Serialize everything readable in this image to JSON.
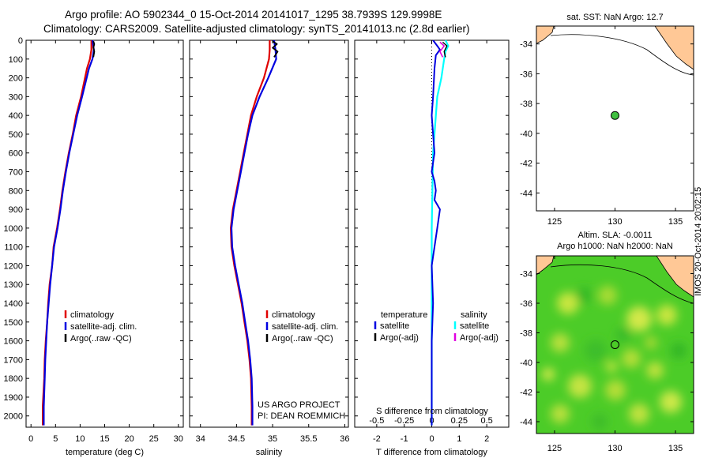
{
  "header": {
    "line1": "Argo profile: AO 5902344_0 15-Oct-2014 20141017_1295 38.7939S 129.9998E",
    "line2": "Climatology: CARS2009. Satellite-adjusted climatology: synTS_20141013.nc (2.8d earlier)"
  },
  "panels": {
    "depth_ticks": [
      "0",
      "100",
      "200",
      "300",
      "400",
      "500",
      "600",
      "700",
      "800",
      "900",
      "1000",
      "1100",
      "1200",
      "1300",
      "1400",
      "1500",
      "1600",
      "1700",
      "1800",
      "1900",
      "2000"
    ],
    "temp": {
      "xlabel": "temperature (deg C)",
      "xticks": [
        "0",
        "5",
        "10",
        "15",
        "20",
        "25",
        "30"
      ],
      "legend": [
        "climatology",
        "satellite-adj. clim.",
        "Argo(..raw -QC)"
      ]
    },
    "sal": {
      "xlabel": "salinity",
      "xticks": [
        "34",
        "34.5",
        "35",
        "35.5",
        "36"
      ],
      "legend": [
        "climatology",
        "satellite-adj. clim.",
        "Argo(..raw -QC)"
      ],
      "credit1": "US ARGO PROJECT",
      "credit2": "PI: DEAN ROEMMICH"
    },
    "diff": {
      "xlabel": "T difference from climatology",
      "toplabel": "S difference from climatology",
      "xticks": [
        "-2",
        "-1",
        "0",
        "1",
        "2"
      ],
      "sticks": [
        "-0.5",
        "-0.25",
        "0",
        "0.25",
        "0.5"
      ],
      "leg_head_t": "temperature",
      "leg_head_s": "salinity",
      "leg_t": [
        "satellite",
        "Argo(-adj)"
      ],
      "leg_s": [
        "satellite",
        "Argo(-adj)"
      ]
    }
  },
  "maps": {
    "sst_title": "sat. SST: NaN  Argo: 12.7",
    "sla_title1": "Altim. SLA: -0.0011",
    "sla_title2": "Argo h1000: NaN  h2000: NaN",
    "lat_ticks": [
      "-34",
      "-36",
      "-38",
      "-40",
      "-42",
      "-44"
    ],
    "lon_ticks": [
      "125",
      "130",
      "135"
    ],
    "stamp": "IMOS 20-Oct-2014 20:02:15"
  },
  "colors": {
    "clim": "#e00000",
    "sat": "#0000e0",
    "argo": "#000000",
    "sal_sat": "#00ffff",
    "sal_argo": "#e000e0",
    "land": "#ffc896",
    "marker": "#40c040"
  },
  "chart_data": [
    {
      "type": "line",
      "title": "temperature profile",
      "xlabel": "temperature (deg C)",
      "ylabel": "depth (m)",
      "xlim": [
        -1,
        31
      ],
      "ylim": [
        2060,
        0
      ],
      "series": [
        {
          "name": "climatology",
          "x": [
            12.3,
            12.3,
            12.0,
            11.4,
            10.2,
            9.2,
            8.5,
            7.7,
            7.0,
            6.4,
            5.9,
            5.3,
            4.6,
            4.3,
            3.8,
            3.5,
            3.3,
            3.0,
            2.8,
            2.7,
            2.4,
            2.4
          ],
          "depth": [
            0,
            50,
            100,
            150,
            300,
            400,
            500,
            600,
            700,
            800,
            900,
            1000,
            1100,
            1200,
            1300,
            1400,
            1500,
            1600,
            1700,
            1800,
            1950,
            2050
          ]
        },
        {
          "name": "satellite-adj. clim.",
          "x": [
            12.5,
            12.8,
            12.5,
            11.8,
            10.4,
            9.4,
            8.6,
            7.8,
            7.1,
            6.5,
            6.0,
            5.4,
            4.7,
            4.3,
            3.9,
            3.6,
            3.3,
            3.1,
            2.9,
            2.8,
            2.6,
            2.6
          ],
          "depth": [
            0,
            50,
            100,
            150,
            300,
            400,
            500,
            600,
            700,
            800,
            900,
            1000,
            1100,
            1200,
            1300,
            1400,
            1500,
            1600,
            1700,
            1800,
            1950,
            2050
          ]
        },
        {
          "name": "Argo(..raw -QC)",
          "x": [
            12.7,
            12.9,
            12.7,
            12.9,
            12.7
          ],
          "depth": [
            5,
            20,
            40,
            60,
            90
          ]
        }
      ]
    },
    {
      "type": "line",
      "title": "salinity profile",
      "xlabel": "salinity",
      "ylabel": "depth (m)",
      "xlim": [
        33.85,
        36.05
      ],
      "ylim": [
        2060,
        0
      ],
      "series": [
        {
          "name": "climatology",
          "x": [
            34.96,
            34.96,
            34.95,
            34.88,
            34.78,
            34.7,
            34.65,
            34.6,
            34.55,
            34.5,
            34.45,
            34.42,
            34.43,
            34.47,
            34.52,
            34.57,
            34.61,
            34.65,
            34.68,
            34.7,
            34.71,
            34.71
          ],
          "depth": [
            0,
            50,
            100,
            200,
            300,
            400,
            500,
            600,
            700,
            800,
            900,
            1000,
            1100,
            1200,
            1300,
            1400,
            1500,
            1600,
            1700,
            1800,
            1950,
            2050
          ]
        },
        {
          "name": "satellite-adj. clim.",
          "x": [
            35.02,
            35.04,
            35.05,
            34.94,
            34.82,
            34.72,
            34.66,
            34.61,
            34.56,
            34.51,
            34.46,
            34.43,
            34.44,
            34.48,
            34.53,
            34.58,
            34.62,
            34.66,
            34.69,
            34.71,
            34.72,
            34.72
          ],
          "depth": [
            0,
            50,
            100,
            200,
            300,
            400,
            500,
            600,
            700,
            800,
            900,
            1000,
            1100,
            1200,
            1300,
            1400,
            1500,
            1600,
            1700,
            1800,
            1950,
            2050
          ]
        },
        {
          "name": "Argo(..raw -QC)",
          "x": [
            35.0,
            35.06,
            35.0,
            35.07,
            35.02
          ],
          "depth": [
            5,
            20,
            40,
            60,
            90
          ]
        }
      ]
    },
    {
      "type": "line",
      "title": "difference from climatology",
      "xlabel": "T difference from climatology",
      "ylabel": "depth (m)",
      "xlim": [
        -2.8,
        2.8
      ],
      "ylim": [
        2060,
        0
      ],
      "series": [
        {
          "name": "temperature satellite",
          "x": [
            0.05,
            0.2,
            0.3,
            0.15,
            0.1,
            0.05,
            0.0,
            0.05,
            0.1,
            0.05,
            0.0,
            0.1,
            0.15,
            0.1,
            0.3,
            0.2,
            0.0,
            0.05,
            0.0,
            0.0,
            0.0
          ],
          "depth": [
            0,
            30,
            50,
            80,
            150,
            300,
            400,
            500,
            600,
            650,
            700,
            750,
            800,
            850,
            900,
            1000,
            1200,
            1400,
            1600,
            1800,
            2050
          ]
        },
        {
          "name": "temperature Argo(-adj)",
          "x": [
            0.4,
            0.55,
            0.45,
            0.5
          ],
          "depth": [
            10,
            30,
            60,
            90
          ]
        },
        {
          "name": "salinity satellite",
          "x": [
            0.5,
            0.6,
            0.5,
            0.45,
            0.35,
            0.2,
            0.05,
            0.0,
            0.0,
            0.0
          ],
          "depth": [
            0,
            30,
            60,
            100,
            200,
            300,
            600,
            1000,
            1500,
            2050
          ]
        },
        {
          "name": "salinity Argo(-adj)",
          "x": [
            0.3,
            0.45,
            0.3,
            0.4
          ],
          "depth": [
            10,
            30,
            60,
            90
          ]
        }
      ]
    },
    {
      "type": "scatter",
      "title": "sat. SST: NaN  Argo: 12.7",
      "xlim": [
        123.5,
        136.5
      ],
      "ylim": [
        -45.2,
        -32.8
      ],
      "points": [
        {
          "lon": 130.0,
          "lat": -38.8
        }
      ]
    },
    {
      "type": "heatmap",
      "title": "Altim. SLA: -0.0011",
      "xlim": [
        123.5,
        136.5
      ],
      "ylim": [
        -44.8,
        -32.8
      ],
      "points": [
        {
          "lon": 130.0,
          "lat": -38.8
        }
      ]
    }
  ]
}
